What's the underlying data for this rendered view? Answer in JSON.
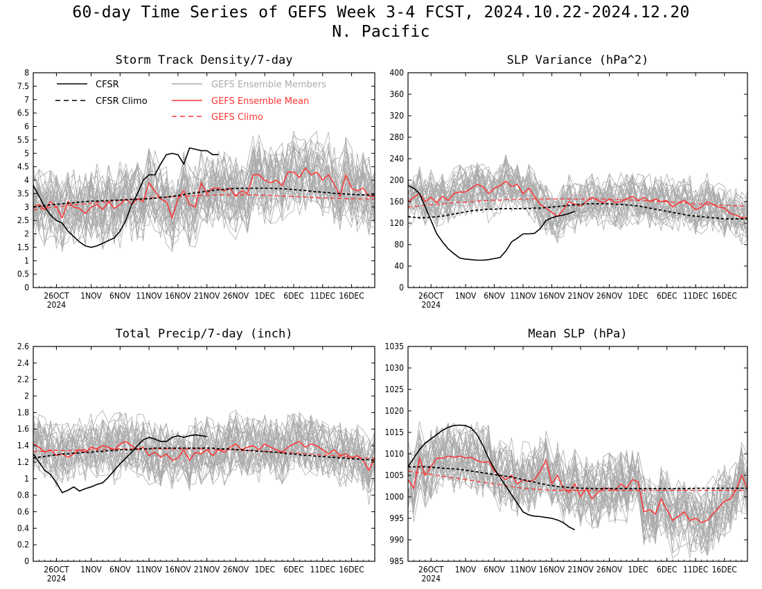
{
  "figure": {
    "title_line1": "60-day Time Series of GEFS Week 3-4 FCST, 2024.10.22-2024.12.20",
    "title_line2": "N. Pacific"
  },
  "legend": {
    "cfsr": "CFSR",
    "cfsr_climo": "CFSR Climo",
    "members": "GEFS Ensemble Members",
    "ens_mean": "GEFS Ensemble Mean",
    "gefs_climo": "GEFS Climo"
  },
  "colors": {
    "cfsr": "#000000",
    "members": "#aaaaaa",
    "ens_mean": "#ff3333",
    "gefs_climo": "#ff3333"
  },
  "x_ticks": {
    "labels": [
      "26OCT",
      "1NOV",
      "6NOV",
      "11NOV",
      "16NOV",
      "21NOV",
      "26NOV",
      "1DEC",
      "6DEC",
      "11DEC",
      "16DEC"
    ],
    "days": [
      4,
      10,
      15,
      20,
      25,
      30,
      35,
      40,
      45,
      50,
      55
    ],
    "year_label": "2024",
    "day_range": [
      0,
      59
    ]
  },
  "chart_data": [
    {
      "type": "line",
      "title": "Storm Track Density/7-day",
      "ylim": [
        0,
        8
      ],
      "yticks": [
        "0",
        "0.5",
        "1",
        "1.5",
        "2",
        "2.5",
        "3",
        "3.5",
        "4",
        "4.5",
        "5",
        "5.5",
        "6",
        "6.5",
        "7",
        "7.5",
        "8"
      ],
      "ytick_values": [
        0,
        0.5,
        1,
        1.5,
        2,
        2.5,
        3,
        3.5,
        4,
        4.5,
        5,
        5.5,
        6,
        6.5,
        7,
        7.5,
        8
      ],
      "member_spread": [
        1.2,
        1.4
      ],
      "cfsr": [
        3.8,
        3.4,
        3.0,
        2.7,
        2.5,
        2.4,
        2.1,
        1.9,
        1.7,
        1.55,
        1.5,
        1.55,
        1.65,
        1.75,
        1.85,
        2.1,
        2.5,
        3.1,
        3.5,
        4.0,
        4.2,
        4.2,
        4.6,
        4.95,
        5.0,
        4.95,
        4.6,
        5.2,
        5.15,
        5.1,
        5.1,
        4.95,
        4.95
      ],
      "cfsr_climo": [
        3.0,
        3.02,
        3.05,
        3.08,
        3.1,
        3.12,
        3.14,
        3.16,
        3.18,
        3.2,
        3.22,
        3.22,
        3.23,
        3.24,
        3.25,
        3.26,
        3.27,
        3.28,
        3.29,
        3.3,
        3.31,
        3.33,
        3.35,
        3.37,
        3.4,
        3.43,
        3.46,
        3.5,
        3.53,
        3.56,
        3.59,
        3.62,
        3.64,
        3.66,
        3.68,
        3.69,
        3.7,
        3.7,
        3.7,
        3.7,
        3.7,
        3.7,
        3.69,
        3.68,
        3.67,
        3.65,
        3.63,
        3.61,
        3.59,
        3.57,
        3.55,
        3.53,
        3.51,
        3.5,
        3.48,
        3.47,
        3.46,
        3.45,
        3.45,
        3.45
      ],
      "ens_mean": [
        3.0,
        3.1,
        2.9,
        3.2,
        3.0,
        2.6,
        3.2,
        3.0,
        2.95,
        2.75,
        3.0,
        3.1,
        2.9,
        3.2,
        2.95,
        3.1,
        3.3,
        3.1,
        3.3,
        3.2,
        3.9,
        3.6,
        3.3,
        3.2,
        2.6,
        3.3,
        3.6,
        3.1,
        3.0,
        3.9,
        3.5,
        3.7,
        3.7,
        3.6,
        3.7,
        3.4,
        3.6,
        3.5,
        4.2,
        4.2,
        4.0,
        3.9,
        4.0,
        3.8,
        4.3,
        4.3,
        4.1,
        4.45,
        4.2,
        4.3,
        4.0,
        4.2,
        3.85,
        3.4,
        4.2,
        3.7,
        3.6,
        3.7,
        3.4,
        3.4
      ],
      "gefs_climo": [
        2.9,
        2.92,
        2.95,
        2.98,
        3.0,
        3.03,
        3.06,
        3.08,
        3.1,
        3.12,
        3.15,
        3.17,
        3.19,
        3.21,
        3.23,
        3.25,
        3.27,
        3.29,
        3.3,
        3.32,
        3.34,
        3.35,
        3.36,
        3.37,
        3.38,
        3.39,
        3.4,
        3.41,
        3.42,
        3.43,
        3.44,
        3.44,
        3.45,
        3.45,
        3.45,
        3.45,
        3.45,
        3.45,
        3.45,
        3.44,
        3.44,
        3.43,
        3.42,
        3.41,
        3.4,
        3.39,
        3.38,
        3.37,
        3.36,
        3.35,
        3.34,
        3.33,
        3.33,
        3.32,
        3.31,
        3.31,
        3.3,
        3.3,
        3.3,
        3.3
      ]
    },
    {
      "type": "line",
      "title": "SLP Variance (hPa^2)",
      "ylim": [
        0,
        400
      ],
      "yticks": [
        "0",
        "40",
        "80",
        "120",
        "160",
        "200",
        "240",
        "280",
        "320",
        "360",
        "400"
      ],
      "ytick_values": [
        0,
        40,
        80,
        120,
        160,
        200,
        240,
        280,
        320,
        360,
        400
      ],
      "member_spread": [
        40,
        45
      ],
      "cfsr": [
        190,
        185,
        175,
        150,
        125,
        100,
        85,
        72,
        63,
        55,
        53,
        52,
        51,
        51,
        52,
        54,
        56,
        68,
        85,
        92,
        100,
        100,
        101,
        110,
        125,
        130,
        133,
        135,
        138,
        142
      ],
      "cfsr_climo": [
        132,
        131,
        130,
        130,
        131,
        132,
        133,
        135,
        137,
        139,
        141,
        143,
        144,
        145,
        146,
        146,
        147,
        147,
        147,
        147,
        147,
        147,
        148,
        148,
        149,
        150,
        151,
        152,
        153,
        154,
        155,
        156,
        156,
        156,
        156,
        156,
        155,
        155,
        154,
        153,
        152,
        150,
        148,
        146,
        144,
        142,
        140,
        138,
        136,
        134,
        133,
        132,
        131,
        130,
        129,
        128,
        128,
        128,
        128,
        128
      ],
      "ens_mean": [
        160,
        168,
        175,
        160,
        168,
        158,
        170,
        162,
        175,
        178,
        178,
        185,
        192,
        188,
        175,
        185,
        190,
        198,
        188,
        192,
        175,
        185,
        170,
        155,
        148,
        140,
        132,
        145,
        160,
        155,
        152,
        160,
        168,
        162,
        158,
        165,
        158,
        160,
        165,
        170,
        162,
        168,
        160,
        165,
        160,
        162,
        150,
        158,
        162,
        155,
        145,
        150,
        160,
        155,
        150,
        148,
        138,
        135,
        130,
        130
      ],
      "gefs_climo": [
        150,
        151,
        152,
        153,
        154,
        155,
        156,
        157,
        158,
        159,
        159,
        160,
        161,
        162,
        162,
        163,
        163,
        164,
        164,
        164,
        165,
        165,
        165,
        165,
        165,
        165,
        165,
        165,
        165,
        165,
        165,
        165,
        165,
        165,
        165,
        164,
        164,
        164,
        163,
        163,
        162,
        162,
        161,
        161,
        160,
        160,
        159,
        158,
        158,
        157,
        156,
        156,
        155,
        154,
        154,
        153,
        153,
        152,
        152,
        152
      ]
    },
    {
      "type": "line",
      "title": "Total Precip/7-day (inch)",
      "ylim": [
        0,
        2.6
      ],
      "yticks": [
        "0",
        "0.2",
        "0.4",
        "0.6",
        "0.8",
        "1",
        "1.2",
        "1.4",
        "1.6",
        "1.8",
        "2",
        "2.2",
        "2.4",
        "2.6"
      ],
      "ytick_values": [
        0,
        0.2,
        0.4,
        0.6,
        0.8,
        1,
        1.2,
        1.4,
        1.6,
        1.8,
        2,
        2.2,
        2.4,
        2.6
      ],
      "member_spread": [
        0.32,
        0.35
      ],
      "cfsr": [
        1.3,
        1.2,
        1.1,
        1.05,
        0.95,
        0.83,
        0.86,
        0.9,
        0.85,
        0.88,
        0.9,
        0.93,
        0.95,
        1.02,
        1.1,
        1.18,
        1.25,
        1.32,
        1.4,
        1.47,
        1.5,
        1.48,
        1.45,
        1.45,
        1.5,
        1.52,
        1.5,
        1.52,
        1.53,
        1.52,
        1.51
      ],
      "cfsr_climo": [
        1.25,
        1.26,
        1.27,
        1.28,
        1.29,
        1.3,
        1.3,
        1.31,
        1.31,
        1.32,
        1.32,
        1.33,
        1.33,
        1.34,
        1.34,
        1.35,
        1.35,
        1.35,
        1.36,
        1.36,
        1.36,
        1.37,
        1.37,
        1.37,
        1.37,
        1.37,
        1.37,
        1.37,
        1.37,
        1.37,
        1.37,
        1.37,
        1.36,
        1.36,
        1.36,
        1.35,
        1.35,
        1.34,
        1.34,
        1.33,
        1.33,
        1.32,
        1.32,
        1.31,
        1.3,
        1.3,
        1.29,
        1.28,
        1.28,
        1.27,
        1.27,
        1.26,
        1.26,
        1.25,
        1.25,
        1.24,
        1.24,
        1.23,
        1.23,
        1.22
      ],
      "ens_mean": [
        1.42,
        1.38,
        1.32,
        1.35,
        1.28,
        1.3,
        1.26,
        1.3,
        1.35,
        1.32,
        1.38,
        1.36,
        1.4,
        1.38,
        1.35,
        1.42,
        1.45,
        1.4,
        1.35,
        1.38,
        1.28,
        1.32,
        1.26,
        1.3,
        1.22,
        1.25,
        1.35,
        1.22,
        1.32,
        1.3,
        1.35,
        1.28,
        1.35,
        1.32,
        1.38,
        1.42,
        1.35,
        1.38,
        1.4,
        1.35,
        1.42,
        1.38,
        1.35,
        1.32,
        1.38,
        1.42,
        1.45,
        1.38,
        1.42,
        1.4,
        1.35,
        1.3,
        1.35,
        1.28,
        1.3,
        1.25,
        1.28,
        1.22,
        1.1,
        1.25
      ],
      "gefs_climo": [
        1.33,
        1.33,
        1.33,
        1.34,
        1.34,
        1.34,
        1.34,
        1.34,
        1.35,
        1.35,
        1.35,
        1.35,
        1.35,
        1.36,
        1.36,
        1.36,
        1.36,
        1.36,
        1.36,
        1.36,
        1.36,
        1.36,
        1.36,
        1.36,
        1.36,
        1.36,
        1.36,
        1.36,
        1.36,
        1.36,
        1.35,
        1.35,
        1.35,
        1.35,
        1.35,
        1.35,
        1.34,
        1.34,
        1.34,
        1.33,
        1.33,
        1.33,
        1.32,
        1.32,
        1.32,
        1.31,
        1.31,
        1.3,
        1.3,
        1.29,
        1.29,
        1.28,
        1.28,
        1.27,
        1.27,
        1.26,
        1.26,
        1.25,
        1.25,
        1.25
      ]
    },
    {
      "type": "line",
      "title": "Mean SLP (hPa)",
      "ylim": [
        985,
        1035
      ],
      "yticks": [
        "985",
        "990",
        "995",
        "1000",
        "1005",
        "1010",
        "1015",
        "1020",
        "1025",
        "1030",
        "1035"
      ],
      "ytick_values": [
        985,
        990,
        995,
        1000,
        1005,
        1010,
        1015,
        1020,
        1025,
        1030,
        1035
      ],
      "member_spread": [
        7,
        8
      ],
      "cfsr": [
        1007,
        1009,
        1011,
        1012.5,
        1013.5,
        1014.5,
        1015.5,
        1016.2,
        1016.6,
        1016.7,
        1016.6,
        1016,
        1014.5,
        1012,
        1009,
        1006.5,
        1004.5,
        1002.5,
        1000.5,
        998.5,
        996.5,
        995.8,
        995.5,
        995.4,
        995.2,
        995,
        994.6,
        994,
        993,
        992.3
      ],
      "cfsr_climo": [
        1007,
        1007,
        1007,
        1007,
        1006.9,
        1006.8,
        1006.7,
        1006.6,
        1006.5,
        1006.4,
        1006.2,
        1006,
        1005.8,
        1005.6,
        1005.4,
        1005.2,
        1005,
        1004.8,
        1004.6,
        1004.3,
        1004,
        1003.7,
        1003.4,
        1003.1,
        1002.8,
        1002.6,
        1002.4,
        1002.3,
        1002.2,
        1002.1,
        1002,
        1002,
        1001.9,
        1001.9,
        1001.9,
        1001.9,
        1001.9,
        1001.9,
        1001.9,
        1001.9,
        1001.9,
        1001.9,
        1001.9,
        1001.9,
        1001.9,
        1001.9,
        1001.9,
        1001.9,
        1001.9,
        1001.9,
        1002,
        1002,
        1002,
        1002,
        1002,
        1002,
        1002,
        1002,
        1002,
        1002
      ],
      "ens_mean": [
        1004,
        1002,
        1009,
        1005,
        1007,
        1009,
        1009,
        1009.5,
        1009.2,
        1009.5,
        1009,
        1009.2,
        1008.5,
        1008,
        1008.2,
        1006,
        1005,
        1004,
        1005,
        1003,
        1004,
        1003.5,
        1004,
        1006,
        1008.5,
        1003,
        1005,
        1002,
        1001,
        1003,
        1000,
        1002,
        999.5,
        1001,
        1002,
        1002,
        1001.5,
        1003,
        1002,
        1004,
        1003.5,
        996.5,
        997,
        996,
        999.5,
        997,
        994.5,
        995.5,
        996.5,
        994.5,
        995,
        994,
        994.5,
        996,
        997.5,
        999,
        999.5,
        1001.5,
        1005,
        1002
      ],
      "gefs_climo": [
        1006,
        1005.8,
        1005.6,
        1005.4,
        1005.2,
        1005,
        1004.8,
        1004.6,
        1004.4,
        1004.2,
        1004,
        1003.8,
        1003.6,
        1003.4,
        1003.2,
        1003,
        1002.8,
        1002.6,
        1002.4,
        1002.2,
        1002,
        1001.9,
        1001.8,
        1001.7,
        1001.6,
        1001.5,
        1001.5,
        1001.5,
        1001.5,
        1001.5,
        1001.5,
        1001.5,
        1001.5,
        1001.5,
        1001.5,
        1001.5,
        1001.5,
        1001.5,
        1001.5,
        1001.5,
        1001.5,
        1001.5,
        1001.5,
        1001.5,
        1001.5,
        1001.5,
        1001.5,
        1001.5,
        1001.5,
        1001.5,
        1001.5,
        1001.5,
        1001.5,
        1001.5,
        1001.5,
        1001.5,
        1001.5,
        1001.5,
        1001.5,
        1001.5
      ]
    }
  ]
}
